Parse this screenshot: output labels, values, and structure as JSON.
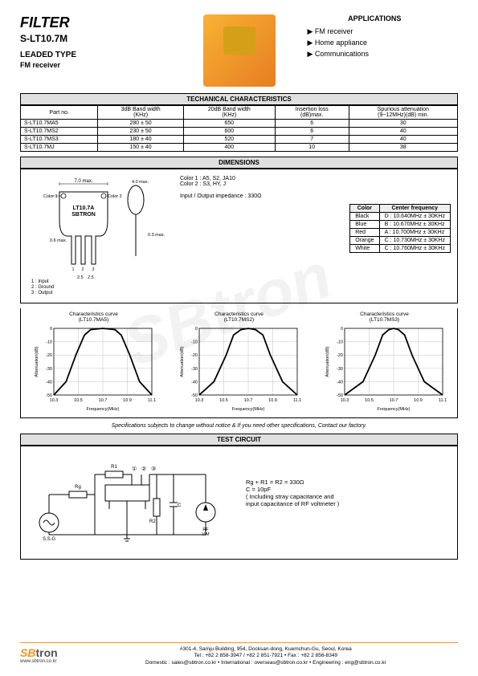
{
  "header": {
    "title": "FILTER",
    "subtitle": "S-LT10.7M",
    "leadtype": "LEADED TYPE",
    "fmrec": "FM receiver"
  },
  "applications": {
    "title": "APPLICATIONS",
    "items": [
      "FM receiver",
      "Home appliance",
      "Communications"
    ]
  },
  "tech": {
    "title": "TECHANICAL CHARACTERISTICS",
    "columns": [
      "Part no.",
      "3dB Band width\n(KHz)",
      "20dB Band width\n(KHz)",
      "Insertion loss\n(dB)max.",
      "Spurious attenuation\n(9~12MHz)(dB) min."
    ],
    "rows": [
      [
        "S-LT10.7MA5",
        "280 ± 50",
        "650",
        "6",
        "30"
      ],
      [
        "S-LT10.7MS2",
        "230 ± 50",
        "600",
        "6",
        "40"
      ],
      [
        "S-LT10.7MS3",
        "180 ± 40",
        "520",
        "7",
        "40"
      ],
      [
        "S-LT10.7MJ",
        "150 ± 40",
        "400",
        "10",
        "38"
      ]
    ]
  },
  "dimensions": {
    "title": "DIMENSIONS",
    "drawing": {
      "width_label": "7.0 max.",
      "height_label": "7.0max.",
      "ellipse_w": "4.0 max.",
      "ellipse_h": "5.0 max.",
      "lead_label": "0.3 max.",
      "lead_thick": "0.6 max.",
      "spacing": "2.5",
      "body_label": "LT10.7A\nSBTRON",
      "color1": "Color 1",
      "color2": "Color 2",
      "pins": "1 : Input\n2 : Ground\n3 : Output"
    },
    "info": {
      "color1": "Color 1 : A5, S2, JA10",
      "color2": "Color 2 : S3, HY, J",
      "impedance": "Input / Output impedance : 330Ω"
    },
    "color_table": {
      "headers": [
        "Color",
        "Center frequency"
      ],
      "rows": [
        [
          "Black",
          "D : 10.640MHz ± 30KHz"
        ],
        [
          "Blue",
          "B : 10.670MHz ± 30KHz"
        ],
        [
          "Red",
          "A : 10.700MHz ± 30KHz"
        ],
        [
          "Orange",
          "C : 10.730MHz ± 30KHz"
        ],
        [
          "White",
          "C : 10.760MHz ± 30KHz"
        ]
      ]
    }
  },
  "charts": {
    "titles": [
      "Characteristics curve\n(LT10.7MA5)",
      "Characteristics curve\n(LT10.7MS2)",
      "Characteristics curve\n(LT10.7MS3)"
    ],
    "xlabel": "Frequency(MHz)",
    "ylabel": "Attenuation(dB)",
    "xticks": [
      "10.3",
      "10.5",
      "10.7",
      "10.9",
      "11.1"
    ],
    "yticks": [
      "0",
      "-10",
      "-20",
      "-30",
      "-40",
      "-50"
    ],
    "xlim": [
      10.3,
      11.1
    ],
    "ylim": [
      -50,
      0
    ],
    "line_color": "#000000",
    "grid_color": "#999999",
    "curves": [
      [
        [
          10.3,
          -50
        ],
        [
          10.4,
          -40
        ],
        [
          10.48,
          -20
        ],
        [
          10.55,
          -5
        ],
        [
          10.6,
          -1
        ],
        [
          10.7,
          0
        ],
        [
          10.8,
          -1
        ],
        [
          10.85,
          -5
        ],
        [
          10.92,
          -20
        ],
        [
          11.0,
          -40
        ],
        [
          11.1,
          -50
        ]
      ],
      [
        [
          10.3,
          -50
        ],
        [
          10.42,
          -40
        ],
        [
          10.52,
          -20
        ],
        [
          10.58,
          -5
        ],
        [
          10.64,
          -1
        ],
        [
          10.7,
          0
        ],
        [
          10.76,
          -1
        ],
        [
          10.82,
          -5
        ],
        [
          10.88,
          -20
        ],
        [
          10.98,
          -40
        ],
        [
          11.1,
          -50
        ]
      ],
      [
        [
          10.3,
          -50
        ],
        [
          10.45,
          -40
        ],
        [
          10.55,
          -20
        ],
        [
          10.61,
          -5
        ],
        [
          10.66,
          -1
        ],
        [
          10.7,
          0
        ],
        [
          10.74,
          -1
        ],
        [
          10.79,
          -5
        ],
        [
          10.85,
          -20
        ],
        [
          10.95,
          -40
        ],
        [
          11.1,
          -50
        ]
      ]
    ]
  },
  "spec_note": "Specifications subjects to change without notice & If you need other specifications, Contact our factory.",
  "test": {
    "title": "TEST CIRCUIT",
    "labels": {
      "ssg": "S.S.G",
      "rg": "Rg",
      "r1": "R1",
      "r2": "R2",
      "c": "C",
      "rfvm": "RF\nV.M",
      "n1": "①",
      "n2": "②",
      "n3": "③"
    },
    "info": [
      "Rg + R1 = R2 = 330Ω",
      "C = 10pF",
      "( Including stray capacitance  and",
      "  input capacitance of RF voltmeter )"
    ]
  },
  "footer": {
    "logo": {
      "sb": "SB",
      "tron": "tron",
      "url": "www.sbtron.co.kr"
    },
    "lines": [
      "#301-4, Samju Building, 954, Docksan-dong, Kuemchun-Gu, Seoul, Korea",
      "Tel : +82 2 858-3947 / +82 2 851-7921 • Fax : +82 2 856-8349",
      "Domestic : sales@sbtron.co.kr • International : overseas@sbtron.co.kr • Engineering : eng@sbtron.co.kr"
    ]
  }
}
